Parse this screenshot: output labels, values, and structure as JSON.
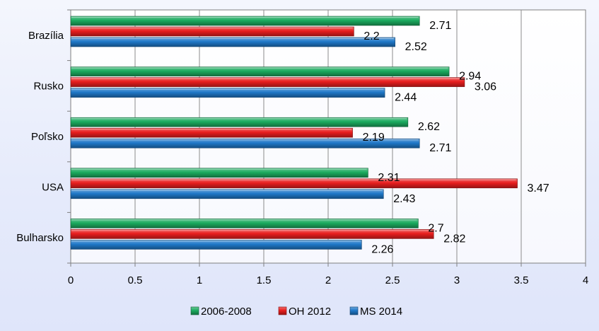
{
  "chart_data": {
    "type": "bar",
    "orientation": "horizontal",
    "title": "",
    "xlabel": "",
    "ylabel": "",
    "xlim": [
      0,
      4
    ],
    "x_ticks": [
      "0",
      "0.5",
      "1",
      "1.5",
      "2",
      "2.5",
      "3",
      "3.5",
      "4"
    ],
    "x_tick_values": [
      0,
      0.5,
      1,
      1.5,
      2,
      2.5,
      3,
      3.5,
      4
    ],
    "grid": "vertical-lines",
    "legend_position": "bottom",
    "categories": [
      "Brazília",
      "Rusko",
      "Poľsko",
      "USA",
      "Bulharsko"
    ],
    "series": [
      {
        "name": "2006-2008",
        "color": "#1bab5f",
        "values": [
          2.71,
          2.94,
          2.62,
          2.31,
          2.7
        ],
        "labels": [
          "2.71",
          "2.94",
          "2.62",
          "2.31",
          "2.7"
        ]
      },
      {
        "name": "OH 2012",
        "color": "#e81e1e",
        "values": [
          2.2,
          3.06,
          2.19,
          3.47,
          2.82
        ],
        "labels": [
          "2.2",
          "3.06",
          "2.19",
          "3.47",
          "2.82"
        ]
      },
      {
        "name": "MS 2014",
        "color": "#1f78c8",
        "values": [
          2.52,
          2.44,
          2.71,
          2.43,
          2.26
        ],
        "labels": [
          "2.52",
          "2.44",
          "2.71",
          "2.43",
          "2.26"
        ]
      }
    ]
  }
}
